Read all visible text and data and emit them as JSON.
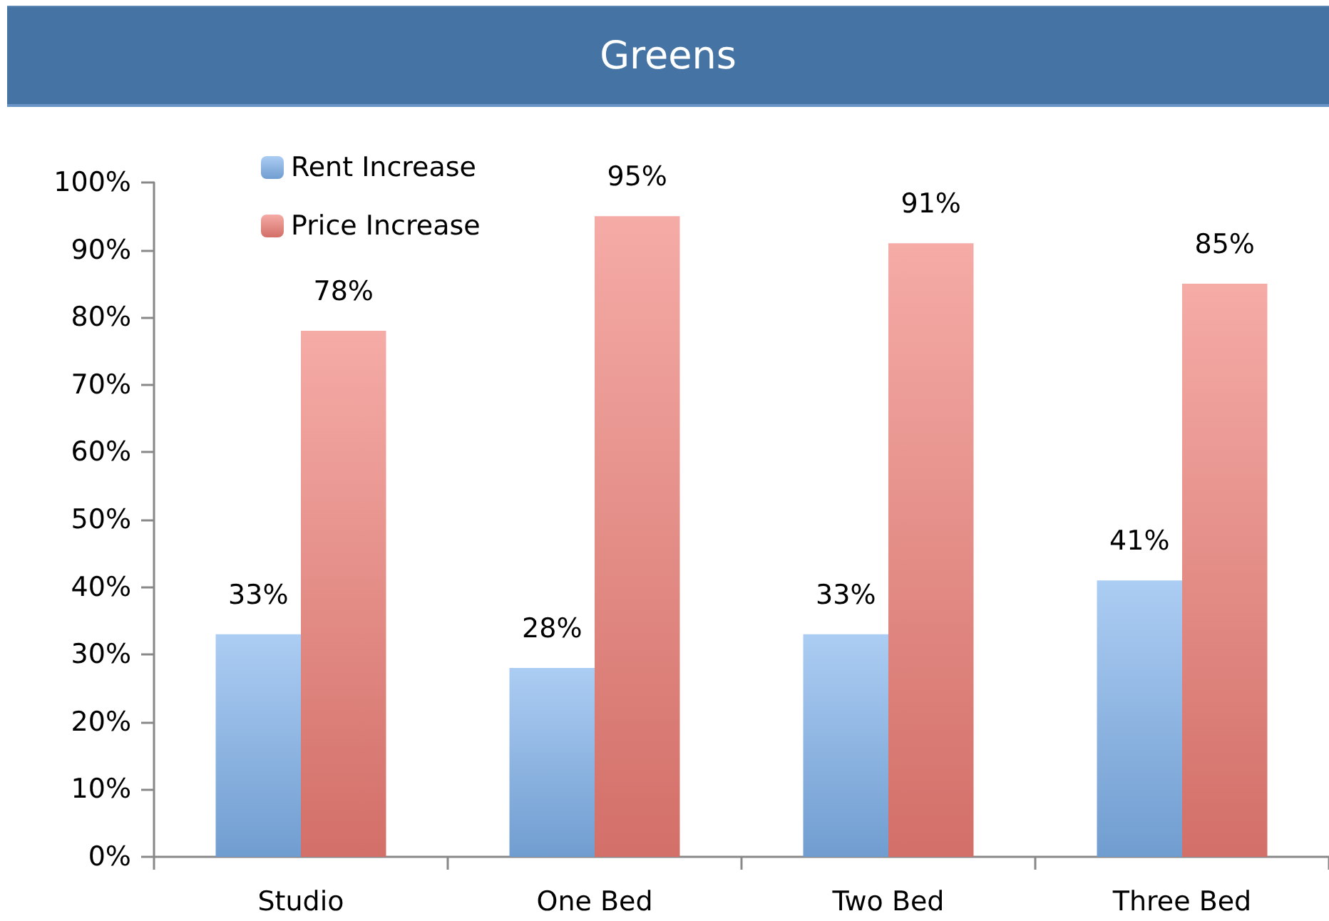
{
  "chart_data": {
    "type": "bar",
    "title": "Greens",
    "categories": [
      "Studio",
      "One Bed",
      "Two Bed",
      "Three Bed"
    ],
    "series": [
      {
        "name": "Rent Increase",
        "color": "#7fb2ec",
        "values": [
          33,
          28,
          33,
          41
        ],
        "value_labels": [
          "33%",
          "28%",
          "33%",
          "41%"
        ]
      },
      {
        "name": "Price Increase",
        "color": "#ef7e76",
        "values": [
          78,
          95,
          91,
          85
        ],
        "value_labels": [
          "78%",
          "95%",
          "91%",
          "85%"
        ]
      }
    ],
    "ylim": [
      0,
      100
    ],
    "yticks": [
      {
        "value": 0,
        "label": "0%"
      },
      {
        "value": 10,
        "label": "10%"
      },
      {
        "value": 20,
        "label": "20%"
      },
      {
        "value": 30,
        "label": "30%"
      },
      {
        "value": 40,
        "label": "40%"
      },
      {
        "value": 50,
        "label": "50%"
      },
      {
        "value": 60,
        "label": "60%"
      },
      {
        "value": 70,
        "label": "70%"
      },
      {
        "value": 80,
        "label": "80%"
      },
      {
        "value": 90,
        "label": "90%"
      },
      {
        "value": 100,
        "label": "100%"
      }
    ],
    "grid": false,
    "legend": "top left"
  }
}
